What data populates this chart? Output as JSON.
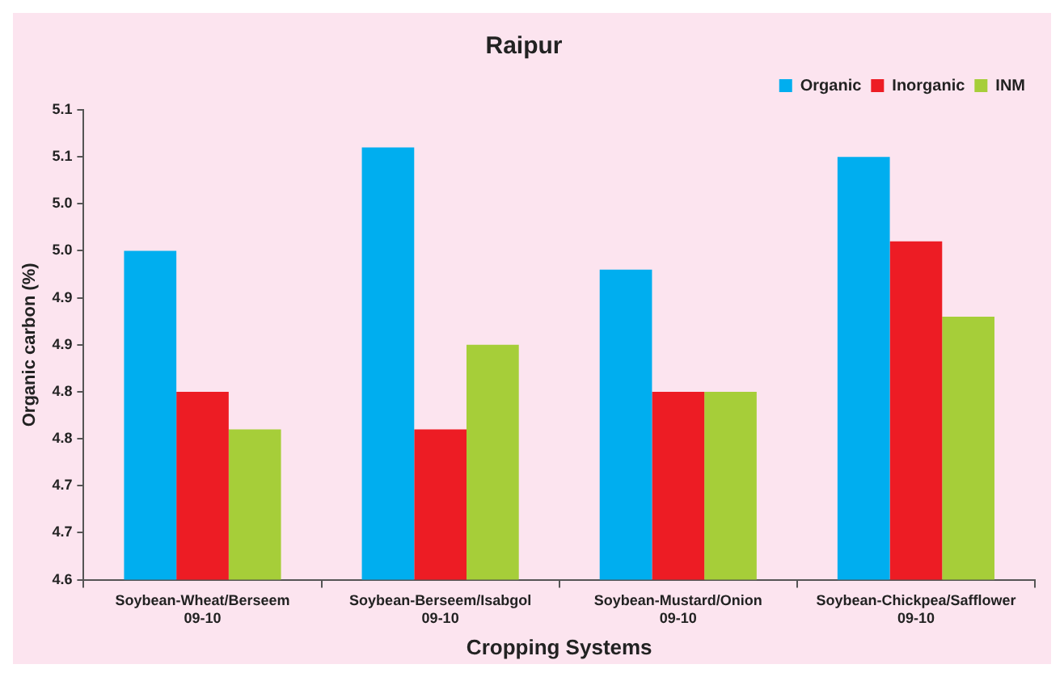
{
  "chart_data": {
    "type": "bar",
    "title": "Raipur",
    "xlabel": "Cropping Systems",
    "ylabel": "Organic carbon (%)",
    "categories": [
      "Soybean-Wheat/Berseem\n09-10",
      "Soybean-Berseem/Isabgol\n09-10",
      "Soybean-Mustard/Onion\n09-10",
      "Soybean-Chickpea/Safflower\n09-10"
    ],
    "series": [
      {
        "name": "Organic",
        "color": "#00aeef",
        "values": [
          4.95,
          5.06,
          4.93,
          5.05
        ]
      },
      {
        "name": "Inorganic",
        "color": "#ed1c24",
        "values": [
          4.8,
          4.76,
          4.8,
          4.96
        ]
      },
      {
        "name": "INM",
        "color": "#a6ce39",
        "values": [
          4.76,
          4.85,
          4.8,
          4.88
        ]
      }
    ],
    "ylim": [
      4.6,
      5.1
    ],
    "yticks": [
      4.6,
      {
        "value": 4.65,
        "label": "4.7"
      },
      4.7,
      {
        "value": 4.75,
        "label": "4.8"
      },
      4.8,
      {
        "value": 4.85,
        "label": "4.9"
      },
      4.9,
      {
        "value": 4.95,
        "label": "5.0"
      },
      {
        "value": 5.0,
        "label": "5.0"
      },
      {
        "value": 5.05,
        "label": "5.1"
      },
      5.1
    ],
    "grid": false,
    "legend": "top right"
  }
}
